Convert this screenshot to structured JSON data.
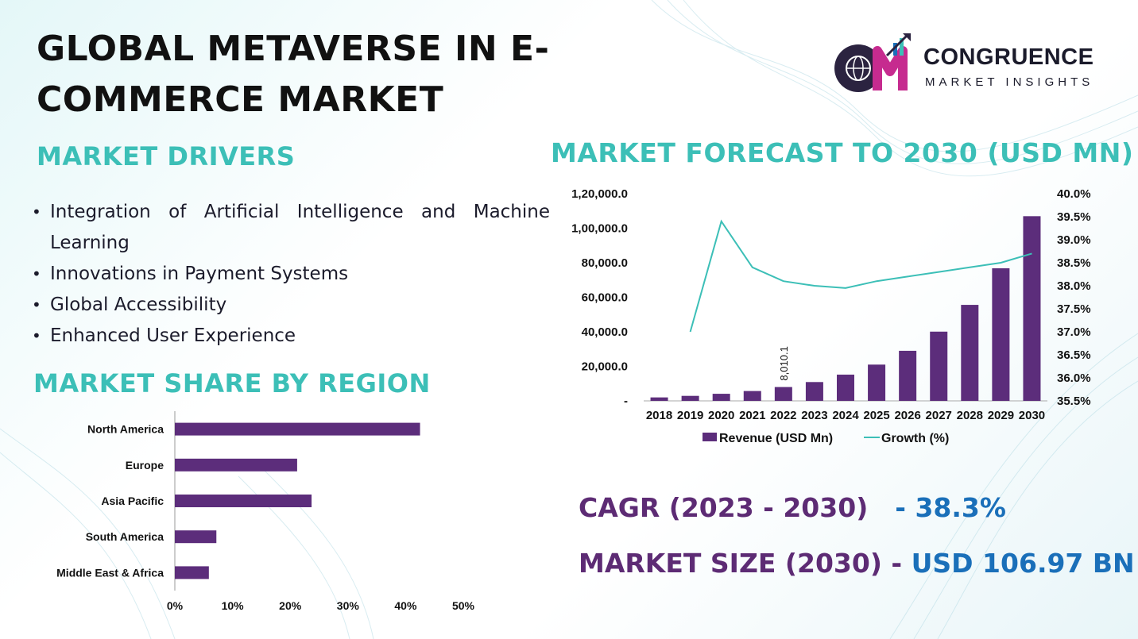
{
  "title": "GLOBAL METAVERSE IN E-COMMERCE MARKET",
  "logo": {
    "name": "CONGRUENCE",
    "sub": "MARKET INSIGHTS",
    "mark": "CM"
  },
  "sections": {
    "drivers": "MARKET DRIVERS",
    "region": "MARKET SHARE BY REGION",
    "forecast": "MARKET FORECAST TO 2030 (USD MN)"
  },
  "drivers": [
    "Integration of Artificial Intelligence and Machine Learning",
    "Innovations in Payment Systems",
    "Global Accessibility",
    "Enhanced User Experience"
  ],
  "stats": {
    "cagr_label": "CAGR (2023 - 2030)",
    "cagr_value": "- 38.3%",
    "size_label": "MARKET SIZE (2030) -",
    "size_value": "USD 106.97 BN"
  },
  "colors": {
    "bar": "#5c2d7b",
    "line": "#3cbfb7",
    "heading": "#3cbfb7",
    "stat_label": "#5d2b74",
    "stat_value": "#1a6fb9"
  },
  "chart_data": [
    {
      "type": "bar",
      "orientation": "horizontal",
      "title": "MARKET SHARE BY REGION",
      "categories": [
        "North America",
        "Europe",
        "Asia Pacific",
        "South America",
        "Middle East & Africa"
      ],
      "values": [
        42.5,
        21.2,
        23.7,
        7.2,
        5.9
      ],
      "xlim": [
        0,
        50
      ],
      "x_ticks": [
        0,
        10,
        20,
        30,
        40,
        50
      ],
      "x_tick_labels": [
        "0%",
        "10%",
        "20%",
        "30%",
        "40%",
        "50%"
      ],
      "grid": false
    },
    {
      "type": "bar+line",
      "title": "MARKET FORECAST TO 2030 (USD MN)",
      "categories": [
        "2018",
        "2019",
        "2020",
        "2021",
        "2022",
        "2023",
        "2024",
        "2025",
        "2026",
        "2027",
        "2028",
        "2029",
        "2030"
      ],
      "series": [
        {
          "name": "Revenue (USD Mn)",
          "type": "bar",
          "axis": "left",
          "values": [
            2000,
            2900,
            4100,
            5700,
            8010.1,
            10900,
            15200,
            21000,
            29000,
            40100,
            55600,
            76800,
            106970
          ]
        },
        {
          "name": "Growth (%)",
          "type": "line",
          "axis": "right",
          "values": [
            null,
            37.0,
            39.4,
            38.4,
            38.1,
            38.0,
            37.95,
            38.1,
            38.2,
            38.3,
            38.4,
            38.5,
            38.7
          ]
        }
      ],
      "data_labels": [
        {
          "category": "2022",
          "text": "8,010.1"
        }
      ],
      "y_left": {
        "lim": [
          0,
          120000
        ],
        "ticks": [
          0,
          20000,
          40000,
          60000,
          80000,
          100000,
          120000
        ],
        "tick_labels": [
          "-",
          "20,000.0",
          "40,000.0",
          "60,000.0",
          "80,000.0",
          "1,00,000.0",
          "1,20,000.0"
        ]
      },
      "y_right": {
        "lim": [
          35.5,
          40.0
        ],
        "ticks": [
          35.5,
          36.0,
          36.5,
          37.0,
          37.5,
          38.0,
          38.5,
          39.0,
          39.5,
          40.0
        ],
        "tick_labels": [
          "35.5%",
          "36.0%",
          "36.5%",
          "37.0%",
          "37.5%",
          "38.0%",
          "38.5%",
          "39.0%",
          "39.5%",
          "40.0%"
        ]
      },
      "legend": {
        "position": "bottom",
        "items": [
          "Revenue (USD Mn)",
          "Growth (%)"
        ]
      },
      "grid": false
    }
  ]
}
